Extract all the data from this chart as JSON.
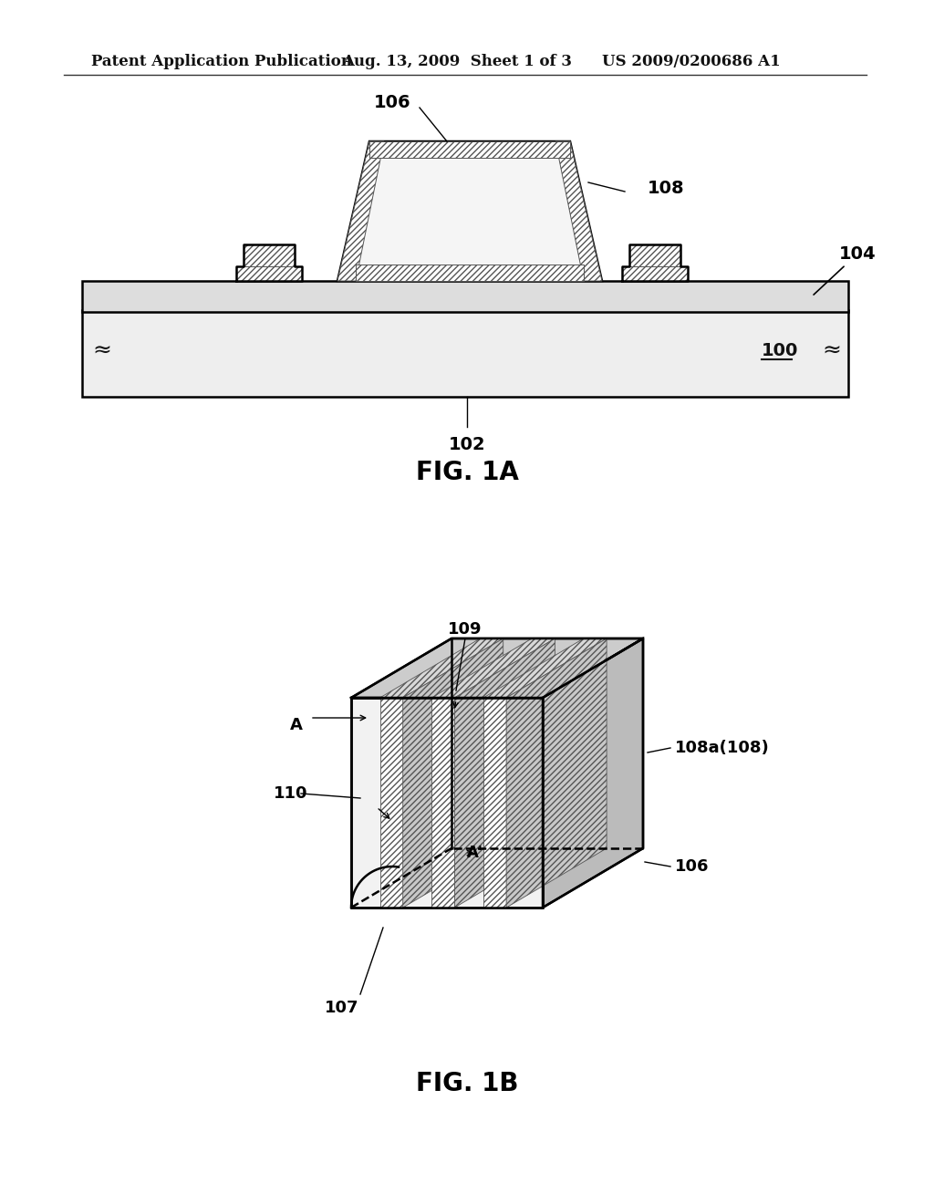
{
  "bg_color": "#ffffff",
  "header_text": "Patent Application Publication",
  "header_date": "Aug. 13, 2009  Sheet 1 of 3",
  "header_patent": "US 2009/0200686 A1",
  "fig1a_label": "FIG. 1A",
  "fig1b_label": "FIG. 1B",
  "hatch_color": "#333333",
  "line_color": "#000000",
  "line_width": 1.8
}
